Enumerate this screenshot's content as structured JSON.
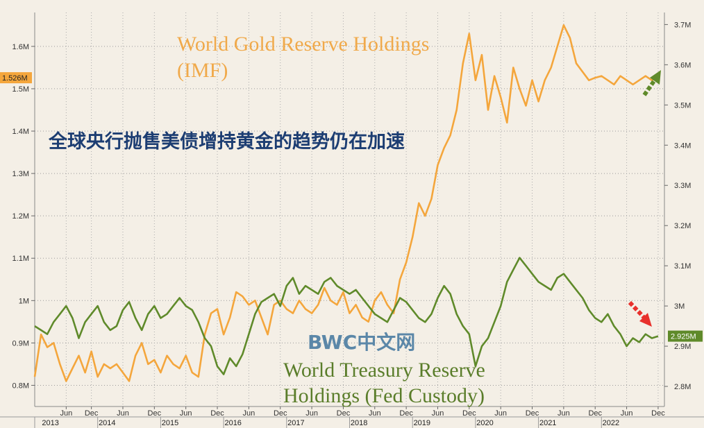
{
  "chart_data": {
    "type": "line",
    "title": "",
    "annotations": {
      "gold_title_line1": "World Gold Reserve Holdings",
      "gold_title_line2": "(IMF)",
      "treasury_title_line1": "World Treasury Reserve",
      "treasury_title_line2": "Holdings (Fed Custody)",
      "chinese_headline": "全球央行抛售美债增持黄金的趋势仍在加速",
      "watermark": "BWC中文网"
    },
    "left_axis": {
      "range": [
        0.75,
        1.68
      ],
      "ticks": [
        {
          "value": 0.8,
          "label": "0.8M"
        },
        {
          "value": 0.9,
          "label": "0.9M"
        },
        {
          "value": 1.0,
          "label": "1M"
        },
        {
          "value": 1.1,
          "label": "1.1M"
        },
        {
          "value": 1.2,
          "label": "1.2M"
        },
        {
          "value": 1.3,
          "label": "1.3M"
        },
        {
          "value": 1.4,
          "label": "1.4M"
        },
        {
          "value": 1.5,
          "label": "1.5M"
        },
        {
          "value": 1.6,
          "label": "1.6M"
        }
      ],
      "badge": {
        "value": 1.526,
        "label": "1.526M",
        "color": "#f4a63c"
      }
    },
    "right_axis": {
      "range": [
        2.75,
        3.73
      ],
      "ticks": [
        {
          "value": 2.8,
          "label": "2.8M"
        },
        {
          "value": 2.9,
          "label": "2.9M"
        },
        {
          "value": 3.0,
          "label": "3M"
        },
        {
          "value": 3.1,
          "label": "3.1M"
        },
        {
          "value": 3.2,
          "label": "3.2M"
        },
        {
          "value": 3.3,
          "label": "3.3M"
        },
        {
          "value": 3.4,
          "label": "3.4M"
        },
        {
          "value": 3.5,
          "label": "3.5M"
        },
        {
          "value": 3.6,
          "label": "3.6M"
        },
        {
          "value": 3.7,
          "label": "3.7M"
        }
      ],
      "badge": {
        "value": 2.925,
        "label": "2.925M",
        "color": "#5f8a2a"
      }
    },
    "x_axis": {
      "range": [
        2013.0,
        2023.0
      ],
      "minor_ticks": [
        {
          "x": 2013.5,
          "label": "Jun"
        },
        {
          "x": 2013.9,
          "label": "Dec"
        },
        {
          "x": 2014.4,
          "label": "Jun"
        },
        {
          "x": 2014.9,
          "label": "Dec"
        },
        {
          "x": 2015.4,
          "label": "Jun"
        },
        {
          "x": 2015.9,
          "label": "Dec"
        },
        {
          "x": 2016.4,
          "label": "Jun"
        },
        {
          "x": 2016.9,
          "label": "Dec"
        },
        {
          "x": 2017.4,
          "label": "Jun"
        },
        {
          "x": 2017.9,
          "label": "Dec"
        },
        {
          "x": 2018.4,
          "label": "Jun"
        },
        {
          "x": 2018.9,
          "label": "Dec"
        },
        {
          "x": 2019.4,
          "label": "Jun"
        },
        {
          "x": 2019.9,
          "label": "Dec"
        },
        {
          "x": 2020.4,
          "label": "Jun"
        },
        {
          "x": 2020.9,
          "label": "Dec"
        },
        {
          "x": 2021.4,
          "label": "Jun"
        },
        {
          "x": 2021.9,
          "label": "Dec"
        },
        {
          "x": 2022.4,
          "label": "Jun"
        },
        {
          "x": 2022.9,
          "label": "Dec"
        }
      ],
      "years": [
        {
          "x": 2013.25,
          "label": "2013"
        },
        {
          "x": 2014.15,
          "label": "2014"
        },
        {
          "x": 2015.15,
          "label": "2015"
        },
        {
          "x": 2016.15,
          "label": "2016"
        },
        {
          "x": 2017.15,
          "label": "2017"
        },
        {
          "x": 2018.15,
          "label": "2018"
        },
        {
          "x": 2019.15,
          "label": "2019"
        },
        {
          "x": 2020.15,
          "label": "2020"
        },
        {
          "x": 2021.15,
          "label": "2021"
        },
        {
          "x": 2022.15,
          "label": "2022"
        }
      ]
    },
    "grid": true,
    "series": [
      {
        "name": "World Gold Reserve Holdings (IMF)",
        "axis": "left",
        "color": "#f4a63c",
        "x": [
          2013.0,
          2013.1,
          2013.2,
          2013.3,
          2013.4,
          2013.5,
          2013.6,
          2013.7,
          2013.8,
          2013.9,
          2014.0,
          2014.1,
          2014.2,
          2014.3,
          2014.4,
          2014.5,
          2014.6,
          2014.7,
          2014.8,
          2014.9,
          2015.0,
          2015.1,
          2015.2,
          2015.3,
          2015.4,
          2015.5,
          2015.6,
          2015.7,
          2015.8,
          2015.9,
          2016.0,
          2016.1,
          2016.2,
          2016.3,
          2016.4,
          2016.5,
          2016.6,
          2016.7,
          2016.8,
          2016.9,
          2017.0,
          2017.1,
          2017.2,
          2017.3,
          2017.4,
          2017.5,
          2017.6,
          2017.7,
          2017.8,
          2017.9,
          2018.0,
          2018.1,
          2018.2,
          2018.3,
          2018.4,
          2018.5,
          2018.6,
          2018.7,
          2018.8,
          2018.9,
          2019.0,
          2019.1,
          2019.2,
          2019.3,
          2019.4,
          2019.5,
          2019.6,
          2019.7,
          2019.8,
          2019.9,
          2020.0,
          2020.1,
          2020.2,
          2020.3,
          2020.4,
          2020.5,
          2020.6,
          2020.7,
          2020.8,
          2020.9,
          2021.0,
          2021.1,
          2021.2,
          2021.3,
          2021.4,
          2021.5,
          2021.6,
          2021.7,
          2021.8,
          2021.9,
          2022.0,
          2022.1,
          2022.2,
          2022.3,
          2022.4,
          2022.5,
          2022.6,
          2022.7,
          2022.8,
          2022.9
        ],
        "values": [
          0.82,
          0.92,
          0.89,
          0.9,
          0.85,
          0.81,
          0.84,
          0.87,
          0.83,
          0.88,
          0.82,
          0.85,
          0.84,
          0.85,
          0.83,
          0.81,
          0.87,
          0.9,
          0.85,
          0.86,
          0.83,
          0.87,
          0.85,
          0.84,
          0.87,
          0.83,
          0.82,
          0.92,
          0.97,
          0.98,
          0.92,
          0.96,
          1.02,
          1.01,
          0.99,
          1.0,
          0.96,
          0.92,
          0.99,
          1.0,
          0.98,
          0.97,
          1.0,
          0.98,
          0.97,
          0.99,
          1.03,
          1.0,
          0.99,
          1.02,
          0.97,
          0.99,
          0.96,
          0.95,
          1.0,
          1.02,
          0.99,
          0.97,
          1.05,
          1.09,
          1.15,
          1.23,
          1.2,
          1.24,
          1.32,
          1.36,
          1.39,
          1.45,
          1.56,
          1.63,
          1.52,
          1.58,
          1.45,
          1.53,
          1.48,
          1.42,
          1.55,
          1.5,
          1.46,
          1.52,
          1.47,
          1.52,
          1.55,
          1.6,
          1.65,
          1.62,
          1.56,
          1.54,
          1.52,
          1.526,
          1.53,
          1.52,
          1.51,
          1.53,
          1.52,
          1.51,
          1.52,
          1.53,
          1.52,
          1.526
        ]
      },
      {
        "name": "World Treasury Reserve Holdings (Fed Custody)",
        "axis": "right",
        "color": "#5f8a2a",
        "x": [
          2013.0,
          2013.1,
          2013.2,
          2013.3,
          2013.4,
          2013.5,
          2013.6,
          2013.7,
          2013.8,
          2013.9,
          2014.0,
          2014.1,
          2014.2,
          2014.3,
          2014.4,
          2014.5,
          2014.6,
          2014.7,
          2014.8,
          2014.9,
          2015.0,
          2015.1,
          2015.2,
          2015.3,
          2015.4,
          2015.5,
          2015.6,
          2015.7,
          2015.8,
          2015.9,
          2016.0,
          2016.1,
          2016.2,
          2016.3,
          2016.4,
          2016.5,
          2016.6,
          2016.7,
          2016.8,
          2016.9,
          2017.0,
          2017.1,
          2017.2,
          2017.3,
          2017.4,
          2017.5,
          2017.6,
          2017.7,
          2017.8,
          2017.9,
          2018.0,
          2018.1,
          2018.2,
          2018.3,
          2018.4,
          2018.5,
          2018.6,
          2018.7,
          2018.8,
          2018.9,
          2019.0,
          2019.1,
          2019.2,
          2019.3,
          2019.4,
          2019.5,
          2019.6,
          2019.7,
          2019.8,
          2019.9,
          2020.0,
          2020.1,
          2020.2,
          2020.3,
          2020.4,
          2020.5,
          2020.6,
          2020.7,
          2020.8,
          2020.9,
          2021.0,
          2021.1,
          2021.2,
          2021.3,
          2021.4,
          2021.5,
          2021.6,
          2021.7,
          2021.8,
          2021.9,
          2022.0,
          2022.1,
          2022.2,
          2022.3,
          2022.4,
          2022.5,
          2022.6,
          2022.7,
          2022.8,
          2022.9
        ],
        "values": [
          2.95,
          2.94,
          2.93,
          2.96,
          2.98,
          3.0,
          2.97,
          2.92,
          2.96,
          2.98,
          3.0,
          2.96,
          2.94,
          2.95,
          2.99,
          3.01,
          2.97,
          2.94,
          2.98,
          3.0,
          2.97,
          2.98,
          3.0,
          3.02,
          3.0,
          2.99,
          2.96,
          2.92,
          2.9,
          2.85,
          2.83,
          2.87,
          2.85,
          2.88,
          2.93,
          2.98,
          3.01,
          3.02,
          3.03,
          3.0,
          3.05,
          3.07,
          3.03,
          3.05,
          3.04,
          3.03,
          3.06,
          3.07,
          3.05,
          3.04,
          3.03,
          3.04,
          3.02,
          3.0,
          2.98,
          2.97,
          2.96,
          2.99,
          3.02,
          3.01,
          2.99,
          2.97,
          2.96,
          2.98,
          3.02,
          3.05,
          3.03,
          2.98,
          2.95,
          2.93,
          2.85,
          2.9,
          2.92,
          2.96,
          3.0,
          3.06,
          3.09,
          3.12,
          3.1,
          3.08,
          3.06,
          3.05,
          3.04,
          3.07,
          3.08,
          3.06,
          3.04,
          3.02,
          2.99,
          2.97,
          2.96,
          2.98,
          2.95,
          2.93,
          2.9,
          2.92,
          2.91,
          2.93,
          2.92,
          2.925
        ]
      }
    ]
  }
}
